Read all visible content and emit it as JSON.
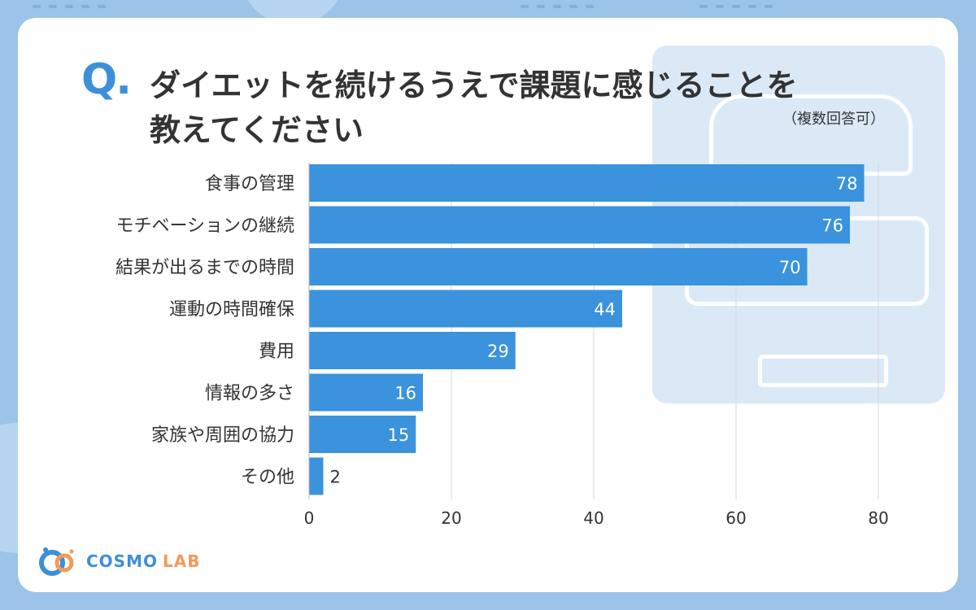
{
  "question": {
    "mark": "Q.",
    "title_line1": "ダイエットを続けるうえで課題に感じることを",
    "title_line2": "教えてください",
    "note": "（複数回答可）"
  },
  "chart_data": {
    "type": "bar",
    "orientation": "horizontal",
    "categories": [
      "食事の管理",
      "モチベーションの継続",
      "結果が出るまでの時間",
      "運動の時間確保",
      "費用",
      "情報の多さ",
      "家族や周囲の協力",
      "その他"
    ],
    "values": [
      78,
      76,
      70,
      44,
      29,
      16,
      15,
      2
    ],
    "xlim": [
      0,
      80
    ],
    "xticks": [
      0,
      20,
      40,
      60,
      80
    ],
    "grid": true,
    "bar_color": "#3a93dc"
  },
  "brand": {
    "logo_text": "COSMO",
    "logo_text2": "LAB",
    "colors": {
      "primary": "#3d8fd8",
      "accent": "#f29a5b"
    }
  }
}
